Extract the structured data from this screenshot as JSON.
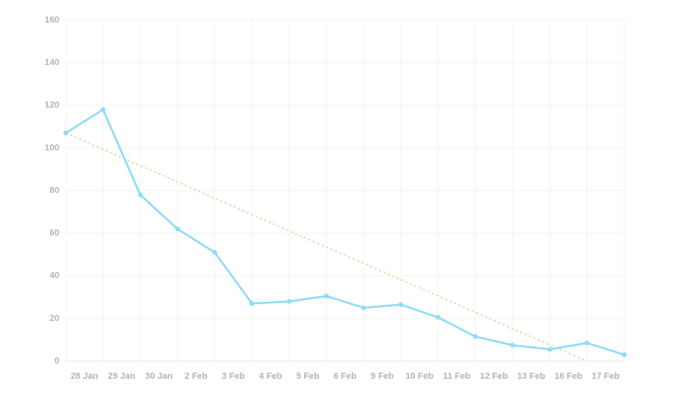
{
  "chart_data": {
    "type": "line",
    "categories": [
      "28 Jan",
      "29 Jan",
      "30 Jan",
      "2 Feb",
      "3 Feb",
      "4 Feb",
      "5 Feb",
      "6 Feb",
      "9 Feb",
      "10 Feb",
      "11 Feb",
      "12 Feb",
      "13 Feb",
      "16 Feb",
      "17 Feb",
      null
    ],
    "series": [
      {
        "color": "#8edcf6",
        "dashed": false,
        "markers": true,
        "values": [
          107,
          118,
          78,
          62,
          51,
          27,
          28,
          30.5,
          25,
          26.5,
          20.5,
          11.5,
          7.5,
          5.5,
          8.5,
          3
        ]
      },
      {
        "color": "#d6e8b8",
        "dashed": true,
        "markers": false,
        "values": [
          107,
          99.4,
          91.7,
          84.1,
          76.4,
          68.8,
          61.1,
          53.5,
          45.9,
          38.2,
          30.6,
          22.9,
          15.3,
          7.6,
          0,
          null
        ]
      }
    ],
    "ylim": [
      0,
      160
    ],
    "yticks": [
      0,
      20,
      40,
      60,
      80,
      100,
      120,
      140,
      160
    ],
    "grid": true
  }
}
